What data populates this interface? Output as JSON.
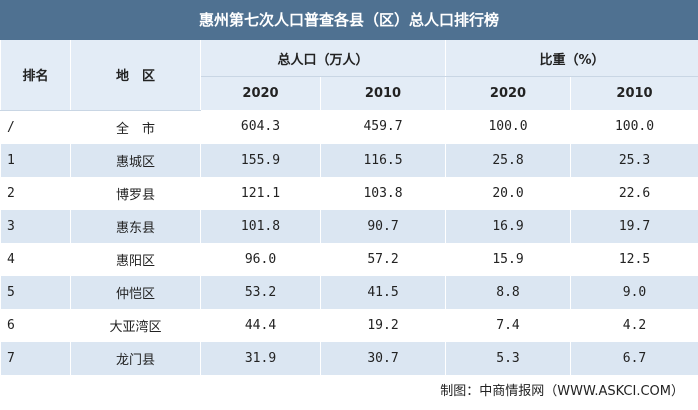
{
  "title": "惠州第七次人口普查各县（区）总人口排行榜",
  "table": {
    "header": {
      "rank": "排名",
      "region": "地　区",
      "population": "总人口（万人）",
      "share": "比重（%）",
      "years": [
        "2020",
        "2010",
        "2020",
        "2010"
      ]
    },
    "rows": [
      [
        "/",
        "全　市",
        "604.3",
        "459.7",
        "100.0",
        "100.0"
      ],
      [
        "1",
        "惠城区",
        "155.9",
        "116.5",
        "25.8",
        "25.3"
      ],
      [
        "2",
        "博罗县",
        "121.1",
        "103.8",
        "20.0",
        "22.6"
      ],
      [
        "3",
        "惠东县",
        "101.8",
        "90.7",
        "16.9",
        "19.7"
      ],
      [
        "4",
        "惠阳区",
        "96.0",
        "57.2",
        "15.9",
        "12.5"
      ],
      [
        "5",
        "仲恺区",
        "53.2",
        "41.5",
        "8.8",
        "9.0"
      ],
      [
        "6",
        "大亚湾区",
        "44.4",
        "19.2",
        "7.4",
        "4.2"
      ],
      [
        "7",
        "龙门县",
        "31.9",
        "30.7",
        "5.3",
        "6.7"
      ]
    ]
  },
  "footer": "制图：中商情报网（WWW.ASKCI.COM）"
}
